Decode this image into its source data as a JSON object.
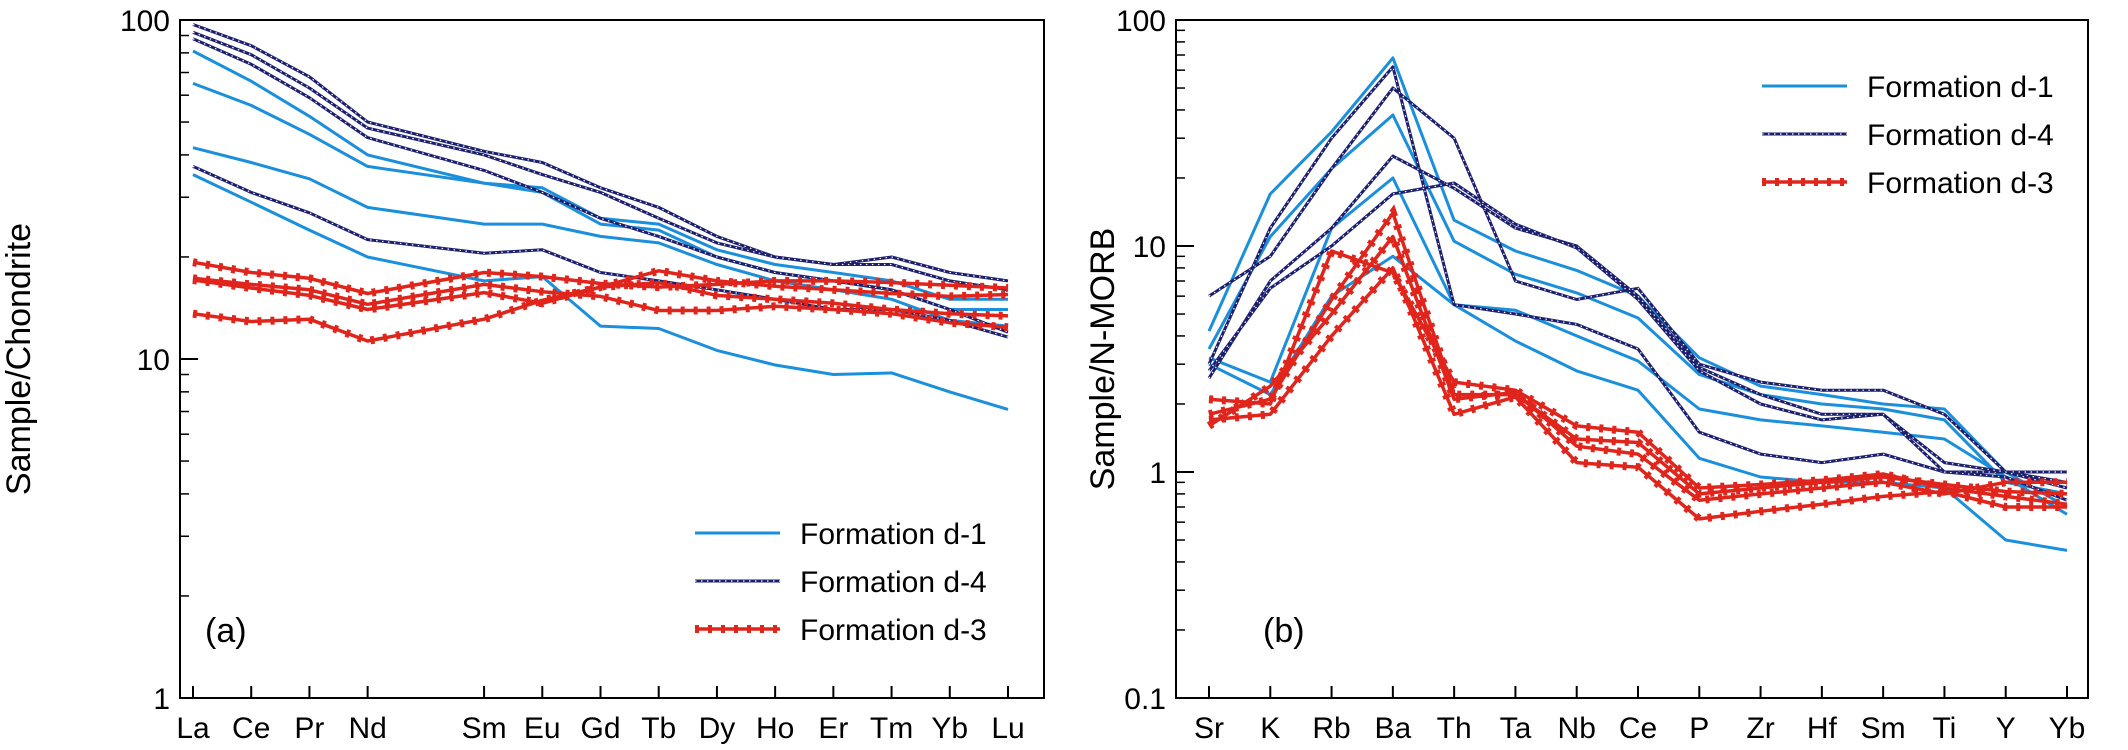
{
  "chart_data": [
    {
      "type": "line",
      "panel_label": "(a)",
      "ylabel": "Sample/Chondrite",
      "xlabel": "",
      "yscale": "log",
      "ylim": [
        1,
        100
      ],
      "yticks": [
        {
          "value": 1,
          "label": "1"
        },
        {
          "value": 10,
          "label": "10"
        },
        {
          "value": 100,
          "label": "100"
        }
      ],
      "grid": false,
      "legend": "bottom-right",
      "categories": [
        {
          "label": "La",
          "pos": 0
        },
        {
          "label": "Ce",
          "pos": 1
        },
        {
          "label": "Pr",
          "pos": 2
        },
        {
          "label": "Nd",
          "pos": 3
        },
        {
          "label": "Sm",
          "pos": 5
        },
        {
          "label": "Eu",
          "pos": 6
        },
        {
          "label": "Gd",
          "pos": 7
        },
        {
          "label": "Tb",
          "pos": 8
        },
        {
          "label": "Dy",
          "pos": 9
        },
        {
          "label": "Ho",
          "pos": 10
        },
        {
          "label": "Er",
          "pos": 11
        },
        {
          "label": "Tm",
          "pos": 12
        },
        {
          "label": "Yb",
          "pos": 13
        },
        {
          "label": "Lu",
          "pos": 14
        }
      ],
      "series": [
        {
          "group": "d1",
          "values": [
            81,
            66,
            52,
            40,
            33,
            31,
            25,
            24,
            20,
            18,
            17,
            16,
            14,
            14
          ]
        },
        {
          "group": "d1",
          "values": [
            65,
            56,
            46,
            37,
            33,
            32,
            26,
            25,
            21,
            19,
            18,
            17,
            15,
            15
          ]
        },
        {
          "group": "d1",
          "values": [
            42,
            38,
            34,
            28,
            25,
            25,
            23,
            22,
            19,
            17,
            16,
            15,
            13,
            12.5
          ]
        },
        {
          "group": "d1",
          "values": [
            35,
            29,
            24,
            20,
            17,
            17.5,
            12.5,
            12.3,
            10.6,
            9.6,
            9.0,
            9.1,
            8.0,
            7.1
          ]
        },
        {
          "group": "d4",
          "values": [
            97,
            84,
            68,
            50,
            41,
            38,
            32,
            28,
            23,
            20,
            19,
            20,
            18,
            17
          ]
        },
        {
          "group": "d4",
          "values": [
            92,
            79,
            63,
            48,
            40,
            35,
            31,
            26,
            22,
            20,
            19,
            19,
            17,
            16
          ]
        },
        {
          "group": "d4",
          "values": [
            88,
            74,
            59,
            45,
            36,
            31,
            26,
            23,
            20,
            18,
            17,
            16,
            14,
            12
          ]
        },
        {
          "group": "d4",
          "values": [
            37,
            31,
            27,
            22.5,
            20.5,
            21,
            18,
            17,
            16,
            15,
            14,
            14,
            13,
            11.6
          ]
        },
        {
          "group": "d3",
          "values": [
            19.3,
            18.0,
            17.3,
            15.6,
            18.0,
            17.5,
            16.7,
            16.3,
            16.6,
            17.0,
            17.0,
            16.8,
            16.5,
            16.2
          ]
        },
        {
          "group": "d3",
          "values": [
            17.1,
            16.2,
            15.4,
            14.0,
            15.7,
            14.6,
            16.3,
            18.2,
            17.0,
            16.4,
            16.0,
            15.6,
            15.3,
            15.5
          ]
        },
        {
          "group": "d3",
          "values": [
            13.6,
            12.9,
            13.1,
            11.3,
            13.1,
            14.9,
            16.3,
            16.8,
            15.4,
            15.0,
            14.6,
            14.0,
            13.6,
            13.4
          ]
        },
        {
          "group": "d3",
          "values": [
            17.3,
            16.6,
            16.0,
            14.5,
            16.6,
            15.8,
            15.3,
            13.9,
            13.9,
            14.3,
            14.0,
            13.6,
            12.8,
            12.4
          ]
        }
      ]
    },
    {
      "type": "line",
      "panel_label": "(b)",
      "ylabel": "Sample/N-MORB",
      "xlabel": "",
      "yscale": "log",
      "ylim": [
        0.1,
        100
      ],
      "yticks": [
        {
          "value": 0.1,
          "label": "0.1"
        },
        {
          "value": 1,
          "label": "1"
        },
        {
          "value": 10,
          "label": "10"
        },
        {
          "value": 100,
          "label": "100"
        }
      ],
      "grid": false,
      "legend": "top-right",
      "categories": [
        {
          "label": "Sr",
          "pos": 0
        },
        {
          "label": "K",
          "pos": 1
        },
        {
          "label": "Rb",
          "pos": 2
        },
        {
          "label": "Ba",
          "pos": 3
        },
        {
          "label": "Th",
          "pos": 4
        },
        {
          "label": "Ta",
          "pos": 5
        },
        {
          "label": "Nb",
          "pos": 6
        },
        {
          "label": "Ce",
          "pos": 7
        },
        {
          "label": "P",
          "pos": 8
        },
        {
          "label": "Zr",
          "pos": 9
        },
        {
          "label": "Hf",
          "pos": 10
        },
        {
          "label": "Sm",
          "pos": 11
        },
        {
          "label": "Ti",
          "pos": 12
        },
        {
          "label": "Y",
          "pos": 13
        },
        {
          "label": "Yb",
          "pos": 14
        }
      ],
      "series": [
        {
          "group": "d1",
          "values": [
            4.2,
            17,
            32,
            68,
            13,
            9.5,
            7.8,
            6.0,
            3.2,
            2.4,
            2.2,
            2.0,
            1.9,
            1.0,
            0.7
          ]
        },
        {
          "group": "d1",
          "values": [
            3.5,
            11,
            22,
            38,
            10.5,
            7.5,
            6.2,
            4.8,
            2.7,
            2.2,
            2.0,
            1.9,
            1.7,
            0.9,
            0.8
          ]
        },
        {
          "group": "d1",
          "values": [
            3.2,
            2.5,
            12,
            20,
            5.5,
            5.2,
            4.0,
            3.1,
            1.9,
            1.7,
            1.6,
            1.5,
            1.4,
            0.95,
            0.65
          ]
        },
        {
          "group": "d1",
          "values": [
            3.0,
            2.2,
            6.0,
            9.0,
            5.5,
            3.8,
            2.8,
            2.3,
            1.15,
            0.95,
            0.9,
            0.9,
            0.85,
            0.5,
            0.45
          ]
        },
        {
          "group": "d4",
          "values": [
            6.0,
            9.0,
            22,
            50,
            30,
            7.0,
            5.8,
            6.5,
            3.0,
            2.5,
            2.3,
            2.3,
            1.8,
            1.0,
            0.9
          ]
        },
        {
          "group": "d4",
          "values": [
            3.0,
            12,
            30,
            62,
            5.5,
            5.0,
            4.5,
            3.5,
            1.5,
            1.2,
            1.1,
            1.2,
            1.0,
            1.0,
            1.0
          ]
        },
        {
          "group": "d4",
          "values": [
            2.6,
            7.0,
            12,
            25,
            18,
            12,
            10,
            6.0,
            2.9,
            2.2,
            1.8,
            1.8,
            1.1,
            1.0,
            0.85
          ]
        },
        {
          "group": "d4",
          "values": [
            2.8,
            6.5,
            10,
            17,
            19,
            12.5,
            9.8,
            5.8,
            2.8,
            2.0,
            1.7,
            1.8,
            1.0,
            0.95,
            0.75
          ]
        },
        {
          "group": "d3",
          "values": [
            2.1,
            2.0,
            9.5,
            7.6,
            2.5,
            2.3,
            1.6,
            1.5,
            0.85,
            0.88,
            0.92,
            0.98,
            0.85,
            0.78,
            0.72
          ]
        },
        {
          "group": "d3",
          "values": [
            1.8,
            2.1,
            5.8,
            14.0,
            2.2,
            2.2,
            1.4,
            1.35,
            0.8,
            0.85,
            0.9,
            0.95,
            0.88,
            0.82,
            0.8
          ]
        },
        {
          "group": "d3",
          "values": [
            1.6,
            2.4,
            5.0,
            11.0,
            2.1,
            2.25,
            1.3,
            1.2,
            0.75,
            0.8,
            0.85,
            0.9,
            0.8,
            0.9,
            0.9
          ]
        },
        {
          "group": "d3",
          "values": [
            1.7,
            1.8,
            4.0,
            8.0,
            1.8,
            2.15,
            1.1,
            1.05,
            0.62,
            0.67,
            0.72,
            0.78,
            0.82,
            0.7,
            0.7
          ]
        }
      ]
    }
  ],
  "legend": [
    {
      "group": "d1",
      "label": "Formation d-1",
      "color": "#1a8fdc",
      "style": "solid"
    },
    {
      "group": "d4",
      "label": "Formation d-4",
      "color": "#1b1f6e",
      "style": "dotted-marker"
    },
    {
      "group": "d3",
      "label": "Formation d-3",
      "color": "#e0251c",
      "style": "dashed-marker"
    }
  ]
}
